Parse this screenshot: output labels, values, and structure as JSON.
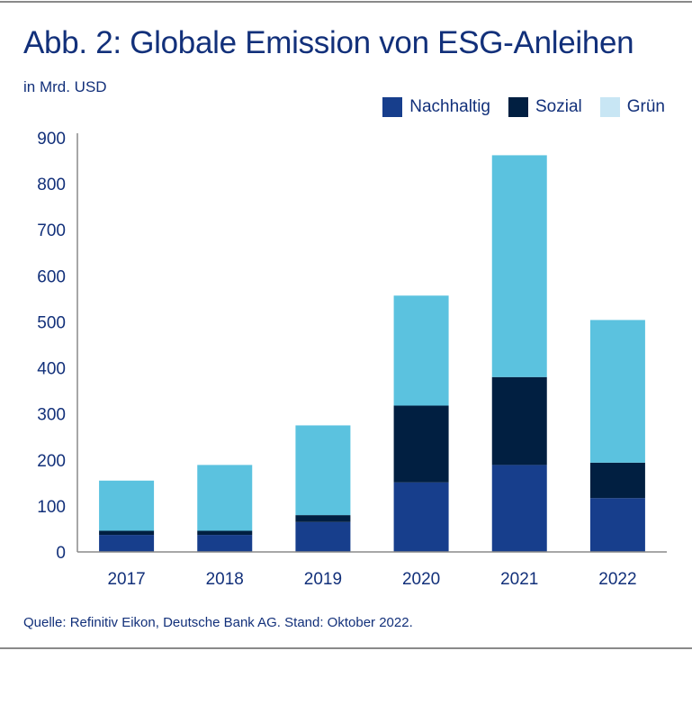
{
  "title": "Abb. 2: Globale Emission von ESG-Anleihen",
  "unit_label": "in Mrd. USD",
  "source": "Quelle: Refinitiv Eikon, Deutsche Bank AG. Stand: Oktober 2022.",
  "legend": [
    {
      "label": "Nachhaltig",
      "color": "#173e8c"
    },
    {
      "label": "Sozial",
      "color": "#011f41"
    },
    {
      "label": "Grün",
      "color": "#c8e6f4"
    }
  ],
  "chart_data": {
    "type": "bar",
    "stacked": true,
    "title": "Abb. 2: Globale Emission von ESG-Anleihen",
    "ylabel": "in Mrd. USD",
    "categories": [
      "2017",
      "2018",
      "2019",
      "2020",
      "2021",
      "2022"
    ],
    "series": [
      {
        "name": "Nachhaltig",
        "color": "#173e8c",
        "values": [
          37,
          37,
          65,
          151,
          189,
          117
        ]
      },
      {
        "name": "Sozial",
        "color": "#011f41",
        "values": [
          9,
          9,
          15,
          167,
          191,
          77
        ]
      },
      {
        "name": "Grün",
        "color": "#5bc2df",
        "values": [
          109,
          143,
          195,
          239,
          482,
          310
        ]
      }
    ],
    "ylim": [
      0,
      900
    ],
    "yticks": [
      "0",
      "100",
      "200",
      "300",
      "400",
      "500",
      "600",
      "700",
      "800",
      "900"
    ],
    "grid": false,
    "legend_position": "top-right"
  }
}
